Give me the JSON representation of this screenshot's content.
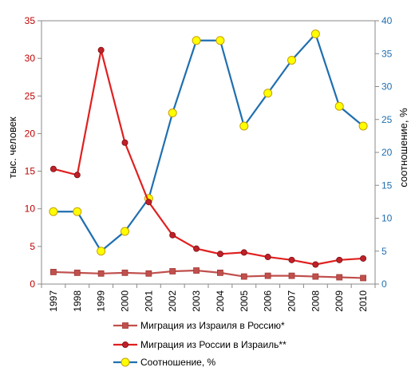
{
  "chart_data": {
    "type": "line",
    "categories": [
      "1997",
      "1998",
      "1999",
      "2000",
      "2001",
      "2002",
      "2003",
      "2004",
      "2005",
      "2006",
      "2007",
      "2008",
      "2009",
      "2010"
    ],
    "y_left": {
      "label": "тыс. человек",
      "ylim": [
        0,
        35
      ],
      "ticks": [
        0,
        5,
        10,
        15,
        20,
        25,
        30,
        35
      ],
      "tick_color": "#c00000"
    },
    "y_right": {
      "label": "соотношение, %",
      "ylim": [
        0,
        40
      ],
      "ticks": [
        0,
        5,
        10,
        15,
        20,
        25,
        30,
        35,
        40
      ],
      "tick_color": "#1f6fb0"
    },
    "grid": false,
    "legend_position": "bottom",
    "series": [
      {
        "name": "Миграция из Израиля в Россию*",
        "axis": "left",
        "color": "#c0504d",
        "marker": "square",
        "values": [
          1.6,
          1.5,
          1.4,
          1.5,
          1.4,
          1.7,
          1.8,
          1.5,
          1.0,
          1.1,
          1.1,
          1.0,
          0.9,
          0.8
        ]
      },
      {
        "name": "Миграция из России в Израиль**",
        "axis": "left",
        "color": "#e02020",
        "marker": "circle",
        "marker_fill": "#c0202a",
        "values": [
          15.3,
          14.5,
          31.1,
          18.8,
          10.9,
          6.5,
          4.7,
          4.0,
          4.2,
          3.6,
          3.2,
          2.6,
          3.2,
          3.4
        ]
      },
      {
        "name": "Соотношение, %",
        "axis": "right",
        "color": "#1f6fb0",
        "marker": "circle",
        "marker_fill": "#ffff00",
        "marker_stroke": "#c8a000",
        "values": [
          11,
          11,
          5,
          8,
          13,
          26,
          37,
          37,
          24,
          29,
          34,
          38,
          27,
          24
        ]
      }
    ]
  }
}
